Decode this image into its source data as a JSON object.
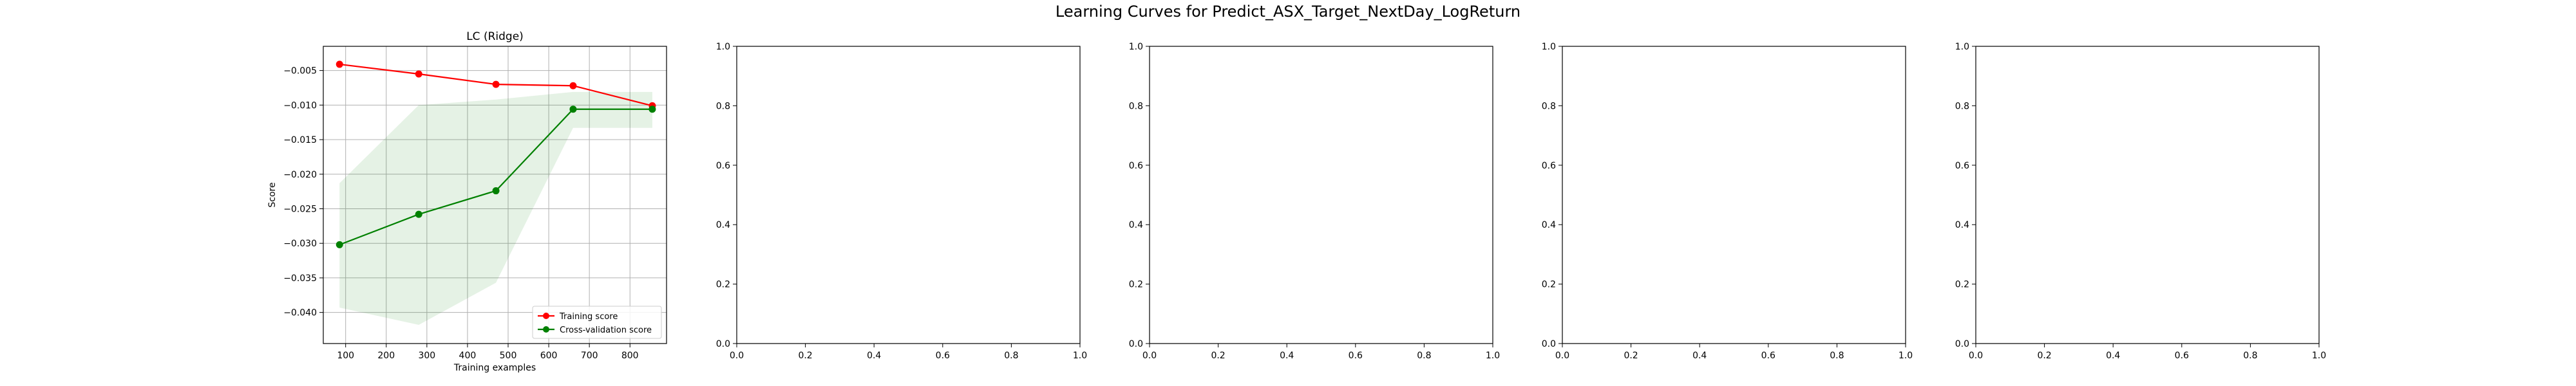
{
  "figure": {
    "title": "Learning Curves for Predict_ASX_Target_NextDay_LogReturn"
  },
  "chart_data": [
    {
      "type": "line",
      "title": "LC (Ridge)",
      "xlabel": "Training examples",
      "ylabel": "Score",
      "xlim": [
        45,
        890
      ],
      "ylim": [
        -0.0445,
        -0.0015
      ],
      "xticks": [
        100,
        200,
        300,
        400,
        500,
        600,
        700,
        800
      ],
      "yticks": [
        -0.005,
        -0.01,
        -0.015,
        -0.02,
        -0.025,
        -0.03,
        -0.035,
        -0.04
      ],
      "xtick_labels": [
        "100",
        "200",
        "300",
        "400",
        "500",
        "600",
        "700",
        "800"
      ],
      "ytick_labels": [
        "−0.005",
        "−0.010",
        "−0.015",
        "−0.020",
        "−0.025",
        "−0.030",
        "−0.035",
        "−0.040"
      ],
      "grid": true,
      "legend": "lower-right",
      "x": [
        85,
        280,
        470,
        660,
        855
      ],
      "series": [
        {
          "name": "Training score",
          "color": "#ff0000",
          "values": [
            -0.0041,
            -0.0055,
            -0.007,
            -0.0072,
            -0.0101
          ],
          "band_lower": [
            -0.0041,
            -0.0055,
            -0.007,
            -0.0072,
            -0.0101
          ],
          "band_upper": [
            -0.0041,
            -0.0055,
            -0.007,
            -0.0072,
            -0.0101
          ]
        },
        {
          "name": "Cross-validation score",
          "color": "#008000",
          "values": [
            -0.0302,
            -0.0258,
            -0.0224,
            -0.0106,
            -0.0106
          ],
          "band_lower": [
            -0.0393,
            -0.0418,
            -0.0357,
            -0.0133,
            -0.0133
          ],
          "band_upper": [
            -0.0213,
            -0.01,
            -0.0092,
            -0.0081,
            -0.0081
          ]
        }
      ],
      "band_color": "#008000"
    },
    {
      "type": "line",
      "title": "",
      "xlim": [
        0,
        1
      ],
      "ylim": [
        0,
        1
      ],
      "xticks": [
        0.0,
        0.2,
        0.4,
        0.6,
        0.8,
        1.0
      ],
      "yticks": [
        0.0,
        0.2,
        0.4,
        0.6,
        0.8,
        1.0
      ],
      "xtick_labels": [
        "0.0",
        "0.2",
        "0.4",
        "0.6",
        "0.8",
        "1.0"
      ],
      "ytick_labels": [
        "0.0",
        "0.2",
        "0.4",
        "0.6",
        "0.8",
        "1.0"
      ],
      "grid": false,
      "series": []
    },
    {
      "type": "line",
      "title": "",
      "xlim": [
        0,
        1
      ],
      "ylim": [
        0,
        1
      ],
      "xticks": [
        0.0,
        0.2,
        0.4,
        0.6,
        0.8,
        1.0
      ],
      "yticks": [
        0.0,
        0.2,
        0.4,
        0.6,
        0.8,
        1.0
      ],
      "xtick_labels": [
        "0.0",
        "0.2",
        "0.4",
        "0.6",
        "0.8",
        "1.0"
      ],
      "ytick_labels": [
        "0.0",
        "0.2",
        "0.4",
        "0.6",
        "0.8",
        "1.0"
      ],
      "grid": false,
      "series": []
    },
    {
      "type": "line",
      "title": "",
      "xlim": [
        0,
        1
      ],
      "ylim": [
        0,
        1
      ],
      "xticks": [
        0.0,
        0.2,
        0.4,
        0.6,
        0.8,
        1.0
      ],
      "yticks": [
        0.0,
        0.2,
        0.4,
        0.6,
        0.8,
        1.0
      ],
      "xtick_labels": [
        "0.0",
        "0.2",
        "0.4",
        "0.6",
        "0.8",
        "1.0"
      ],
      "ytick_labels": [
        "0.0",
        "0.2",
        "0.4",
        "0.6",
        "0.8",
        "1.0"
      ],
      "grid": false,
      "series": []
    },
    {
      "type": "line",
      "title": "",
      "xlim": [
        0,
        1
      ],
      "ylim": [
        0,
        1
      ],
      "xticks": [
        0.0,
        0.2,
        0.4,
        0.6,
        0.8,
        1.0
      ],
      "yticks": [
        0.0,
        0.2,
        0.4,
        0.6,
        0.8,
        1.0
      ],
      "xtick_labels": [
        "0.0",
        "0.2",
        "0.4",
        "0.6",
        "0.8",
        "1.0"
      ],
      "ytick_labels": [
        "0.0",
        "0.2",
        "0.4",
        "0.6",
        "0.8",
        "1.0"
      ],
      "grid": false,
      "series": []
    }
  ]
}
